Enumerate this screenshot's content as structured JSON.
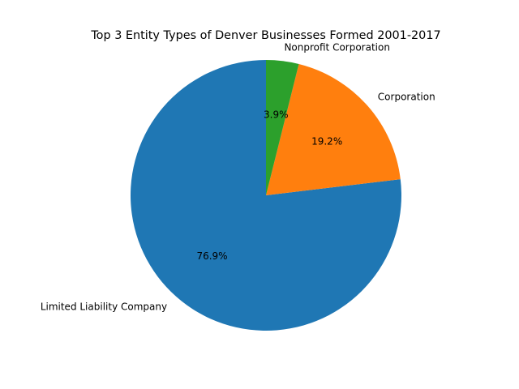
{
  "chart_data": {
    "type": "pie",
    "title": "Top 3 Entity Types of Denver Businesses Formed 2001-2017",
    "labels": [
      "Limited Liability Company",
      "Corporation",
      "Nonprofit Corporation"
    ],
    "percent_labels": [
      "76.9%",
      "19.2%",
      "3.9%"
    ],
    "values": [
      76.9,
      19.2,
      3.9
    ],
    "colors": [
      "#1f77b4",
      "#ff7f0e",
      "#2ca02c"
    ],
    "start_angle_degrees": 90,
    "direction": "counterclockwise",
    "legend": "none"
  }
}
